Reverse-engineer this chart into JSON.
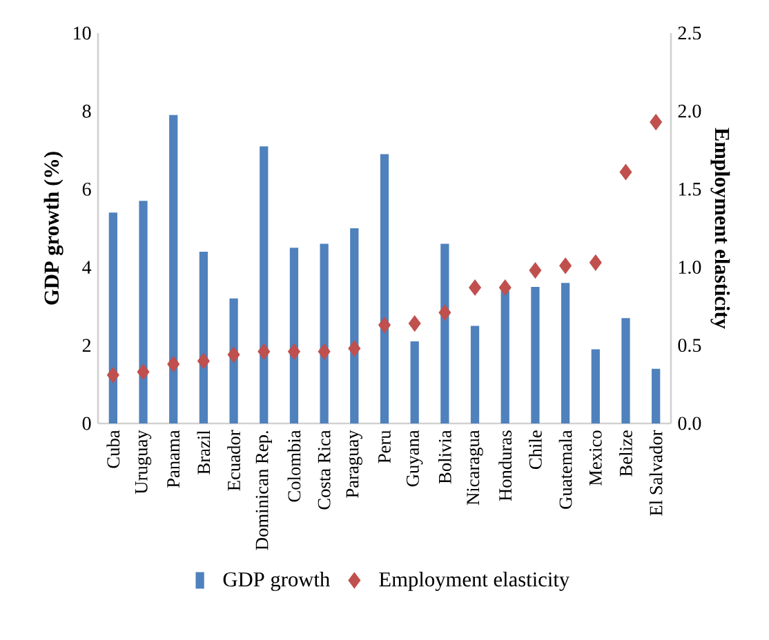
{
  "chart_data": {
    "type": "bar",
    "ylabel": "GDP growth (%)",
    "y2label": "Employment elasticity",
    "categories": [
      "Cuba",
      "Uruguay",
      "Panama",
      "Brazil",
      "Ecuador",
      "Dominican Rep.",
      "Colombia",
      "Costa Rica",
      "Paraguay",
      "Peru",
      "Guyana",
      "Bolivia",
      "Nicaragua",
      "Honduras",
      "Chile",
      "Guatemala",
      "Mexico",
      "Belize",
      "El Salvador"
    ],
    "series": [
      {
        "name": "GDP growth",
        "color": "#4f81bd",
        "values": [
          5.4,
          5.7,
          7.9,
          4.4,
          3.2,
          7.1,
          4.5,
          4.6,
          5.0,
          6.9,
          2.1,
          4.6,
          2.5,
          3.4,
          3.5,
          3.6,
          1.9,
          2.7,
          1.4
        ]
      },
      {
        "name": "Employment elasticity",
        "type": "scatter",
        "axis": "y2",
        "marker": "diamond",
        "color": "#c0504d",
        "values": [
          0.31,
          0.33,
          0.38,
          0.4,
          0.44,
          0.46,
          0.46,
          0.46,
          0.48,
          0.63,
          0.64,
          0.71,
          0.87,
          0.87,
          0.98,
          1.01,
          1.03,
          1.61,
          1.93
        ]
      }
    ],
    "ylim": [
      0,
      10
    ],
    "yticks": [
      0,
      2,
      4,
      6,
      8,
      10
    ],
    "y2lim": [
      0,
      2.5
    ],
    "y2ticks": [
      {
        "value": 0,
        "label": "0.0"
      },
      0.5,
      {
        "value": 1,
        "label": "1.0"
      },
      1.5,
      {
        "value": 2,
        "label": "2.0"
      },
      2.5
    ],
    "legend": "bottom",
    "grid": false
  }
}
